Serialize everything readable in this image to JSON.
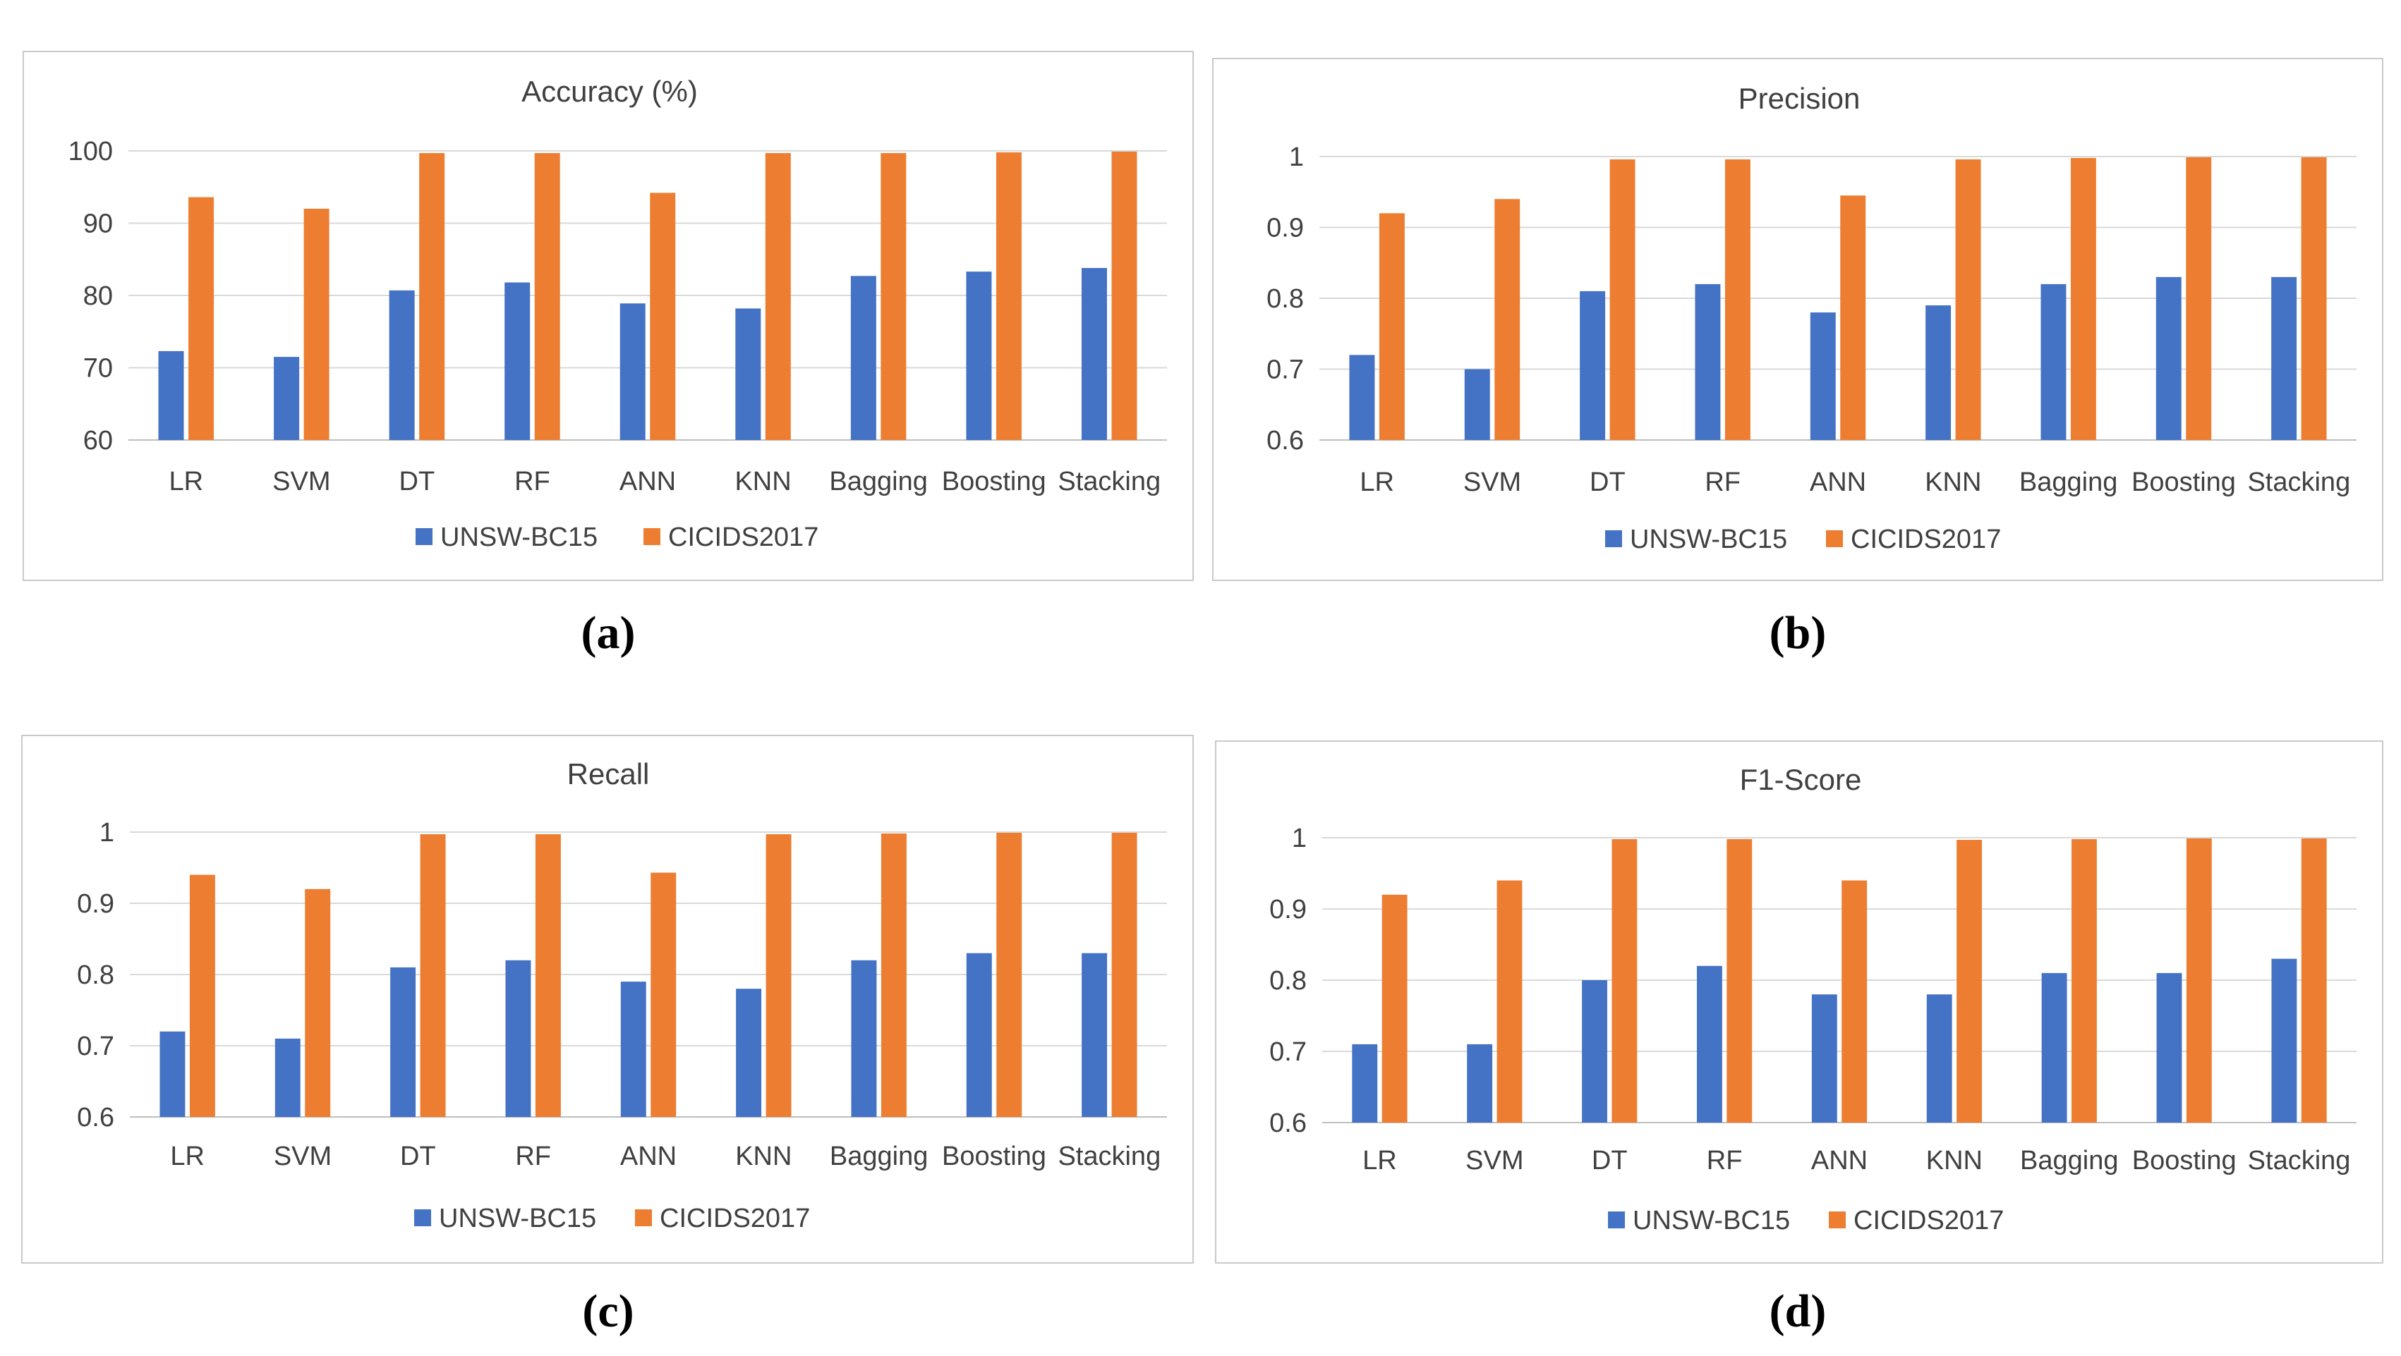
{
  "colors": {
    "unsw": "#4472C4",
    "cicids": "#ED7D31",
    "grid": "#d9d9d9",
    "axis": "#bfbfbf",
    "text": "#404040"
  },
  "legend": [
    "UNSW-BC15",
    "CICIDS2017"
  ],
  "chart_data": [
    {
      "id": "a",
      "type": "bar",
      "title": "Accuracy (%)",
      "caption": "(a)",
      "categories": [
        "LR",
        "SVM",
        "DT",
        "RF",
        "ANN",
        "KNN",
        "Bagging",
        "Boosting",
        "Stacking"
      ],
      "ylim": [
        60,
        100
      ],
      "yticks": [
        "60",
        "70",
        "80",
        "90",
        "100"
      ],
      "ytick_values": [
        60,
        70,
        80,
        90,
        100
      ],
      "series": [
        {
          "name": "UNSW-BC15",
          "values": [
            72.3,
            71.5,
            80.7,
            81.8,
            78.9,
            78.2,
            82.7,
            83.3,
            83.8
          ]
        },
        {
          "name": "CICIDS2017",
          "values": [
            93.6,
            92.0,
            99.7,
            99.7,
            94.2,
            99.7,
            99.7,
            99.8,
            99.9
          ]
        }
      ]
    },
    {
      "id": "b",
      "type": "bar",
      "title": "Precision",
      "caption": "(b)",
      "categories": [
        "LR",
        "SVM",
        "DT",
        "RF",
        "ANN",
        "KNN",
        "Bagging",
        "Boosting",
        "Stacking"
      ],
      "ylim": [
        0.6,
        1.0
      ],
      "yticks": [
        "0.6",
        "0.7",
        "0.8",
        "0.9",
        "1"
      ],
      "ytick_values": [
        0.6,
        0.7,
        0.8,
        0.9,
        1.0
      ],
      "series": [
        {
          "name": "UNSW-BC15",
          "values": [
            0.72,
            0.7,
            0.81,
            0.82,
            0.78,
            0.79,
            0.82,
            0.83,
            0.83
          ]
        },
        {
          "name": "CICIDS2017",
          "values": [
            0.92,
            0.94,
            0.996,
            0.996,
            0.945,
            0.996,
            0.998,
            0.999,
            0.999
          ]
        }
      ]
    },
    {
      "id": "c",
      "type": "bar",
      "title": "Recall",
      "caption": "(c)",
      "categories": [
        "LR",
        "SVM",
        "DT",
        "RF",
        "ANN",
        "KNN",
        "Bagging",
        "Boosting",
        "Stacking"
      ],
      "ylim": [
        0.6,
        1.0
      ],
      "yticks": [
        "0.6",
        "0.7",
        "0.8",
        "0.9",
        "1"
      ],
      "ytick_values": [
        0.6,
        0.7,
        0.8,
        0.9,
        1.0
      ],
      "series": [
        {
          "name": "UNSW-BC15",
          "values": [
            0.72,
            0.71,
            0.81,
            0.82,
            0.79,
            0.78,
            0.82,
            0.83,
            0.83
          ]
        },
        {
          "name": "CICIDS2017",
          "values": [
            0.94,
            0.92,
            0.997,
            0.997,
            0.943,
            0.997,
            0.998,
            0.999,
            0.999
          ]
        }
      ]
    },
    {
      "id": "d",
      "type": "bar",
      "title": "F1-Score",
      "caption": "(d)",
      "categories": [
        "LR",
        "SVM",
        "DT",
        "RF",
        "ANN",
        "KNN",
        "Bagging",
        "Boosting",
        "Stacking"
      ],
      "ylim": [
        0.6,
        1.0
      ],
      "yticks": [
        "0.6",
        "0.7",
        "0.8",
        "0.9",
        "1"
      ],
      "ytick_values": [
        0.6,
        0.7,
        0.8,
        0.9,
        1.0
      ],
      "series": [
        {
          "name": "UNSW-BC15",
          "values": [
            0.71,
            0.71,
            0.8,
            0.82,
            0.78,
            0.78,
            0.81,
            0.81,
            0.83
          ]
        },
        {
          "name": "CICIDS2017",
          "values": [
            0.92,
            0.94,
            0.998,
            0.998,
            0.94,
            0.997,
            0.998,
            0.999,
            0.999
          ]
        }
      ]
    }
  ]
}
